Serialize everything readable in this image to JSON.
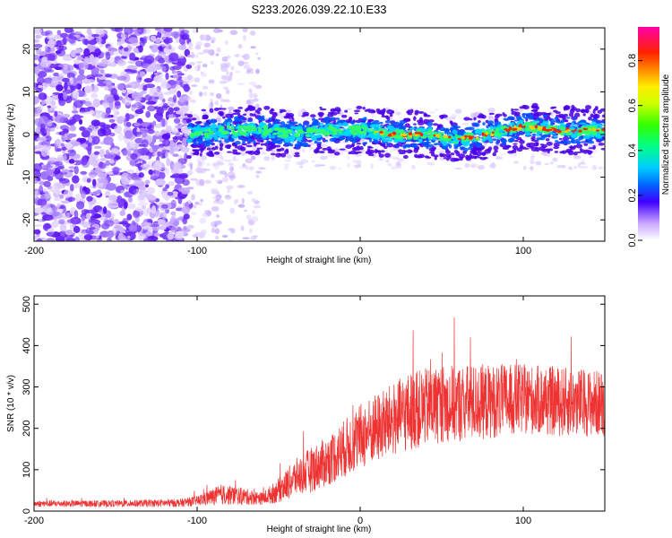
{
  "figure_title": "S233.2026.039.22.10.E33",
  "chart_data": [
    {
      "id": "spectrogram",
      "type": "heatmap",
      "title": "",
      "xlabel": "Height of straight line (km)",
      "ylabel": "Frequency (Hz)",
      "xlim": [
        -200,
        150
      ],
      "ylim": [
        -25,
        25
      ],
      "xticks": [
        -200,
        -100,
        0,
        100
      ],
      "yticks": [
        -20,
        -10,
        0,
        10,
        20
      ],
      "colorbar": {
        "label": "Normalized spectral amplitude",
        "range": [
          0,
          0.95
        ],
        "ticks": [
          0.0,
          0.2,
          0.4,
          0.6,
          0.8
        ]
      },
      "features": {
        "noise_region_km": [
          -200,
          -105
        ],
        "sparse_noise_region_km": [
          -105,
          -62
        ],
        "signal_ridge": {
          "x": [
            -105,
            -80,
            -60,
            -40,
            -20,
            0,
            20,
            40,
            60,
            80,
            100,
            120,
            150
          ],
          "frequency": [
            0,
            1,
            1,
            0,
            1,
            1,
            0,
            0,
            -1,
            0,
            2,
            1,
            1
          ]
        }
      }
    },
    {
      "id": "snr",
      "type": "line",
      "title": "",
      "xlabel": "Height of straight line (km)",
      "ylabel": "SNR (10 * v/v)",
      "xlim": [
        -200,
        150
      ],
      "ylim": [
        0,
        520
      ],
      "xticks": [
        -200,
        -100,
        0,
        100
      ],
      "yticks": [
        0,
        100,
        200,
        300,
        400,
        500
      ],
      "color": "#ee3333",
      "envelope": {
        "x": [
          -200,
          -150,
          -110,
          -100,
          -85,
          -70,
          -60,
          -50,
          -40,
          -30,
          -20,
          -10,
          0,
          10,
          20,
          30,
          40,
          50,
          60,
          80,
          100,
          120,
          150
        ],
        "mean": [
          18,
          18,
          20,
          25,
          40,
          35,
          30,
          50,
          80,
          100,
          120,
          150,
          180,
          200,
          220,
          240,
          250,
          260,
          260,
          265,
          270,
          265,
          260
        ],
        "amplitude": [
          8,
          8,
          10,
          12,
          25,
          20,
          15,
          30,
          45,
          55,
          60,
          70,
          80,
          85,
          90,
          95,
          95,
          95,
          95,
          90,
          85,
          85,
          80
        ]
      }
    }
  ]
}
